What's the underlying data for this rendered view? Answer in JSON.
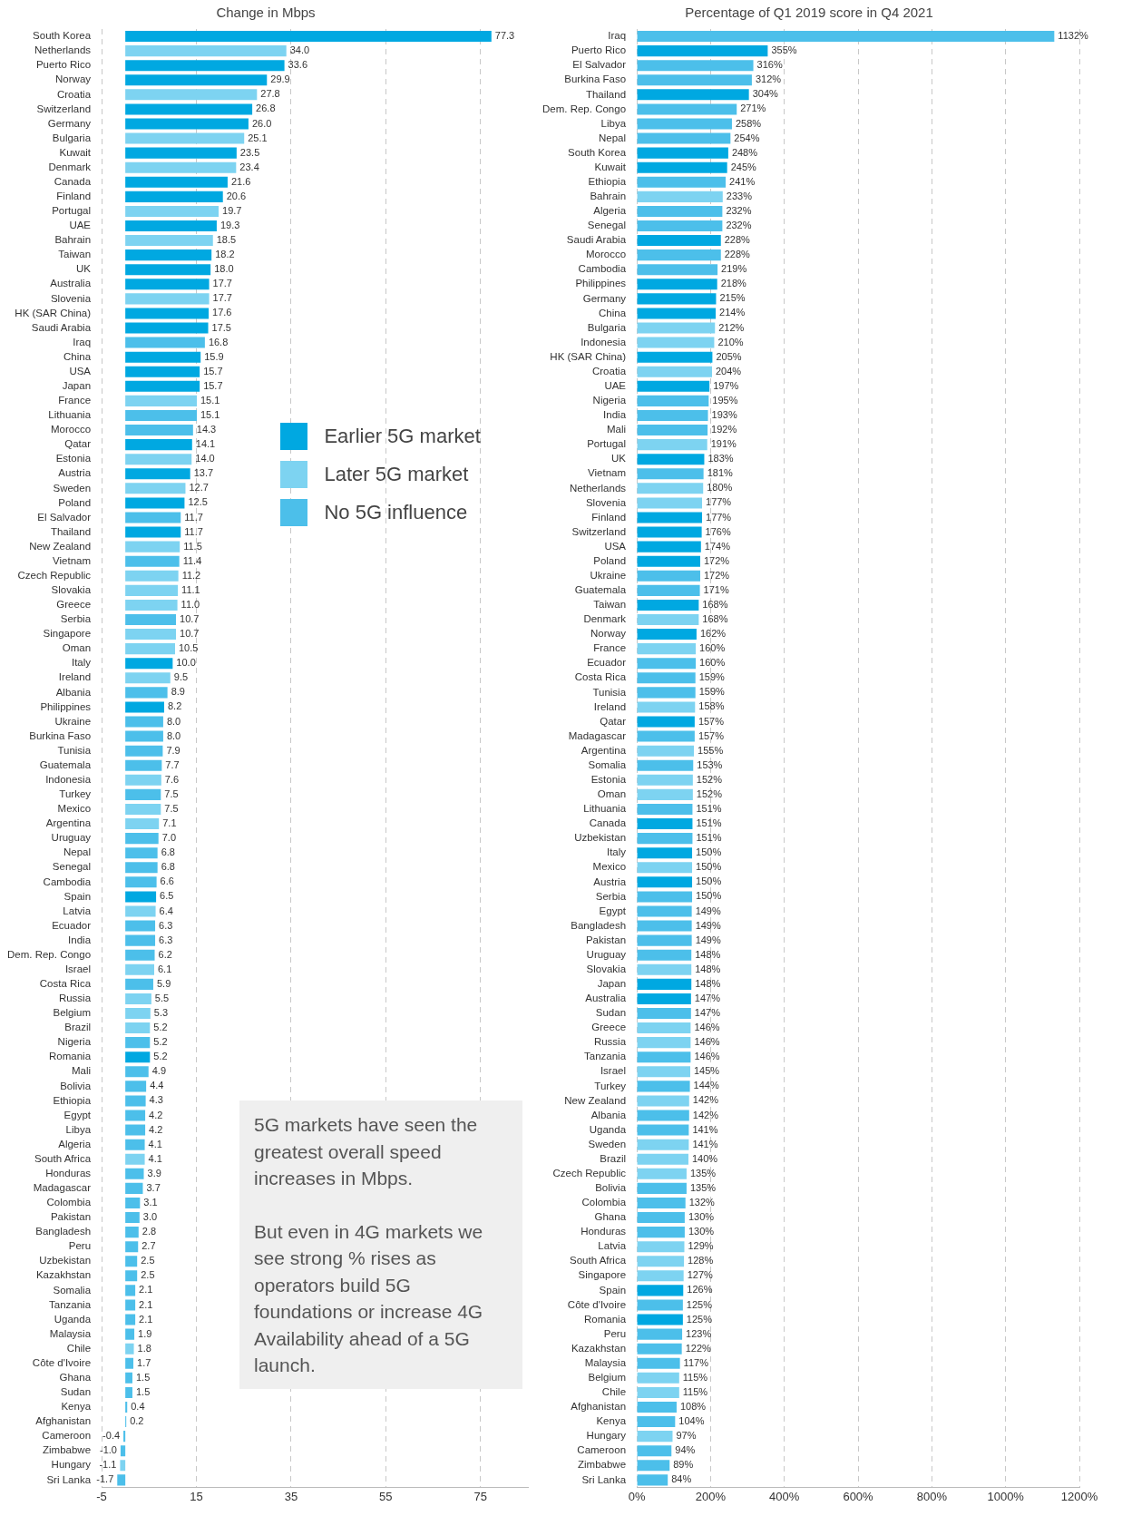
{
  "chart_data": [
    {
      "type": "bar",
      "orientation": "horizontal",
      "title": "Change in Mbps",
      "grid": "x",
      "legend": "right",
      "categories": [
        "South Korea",
        "Netherlands",
        "Puerto Rico",
        "Norway",
        "Croatia",
        "Switzerland",
        "Germany",
        "Bulgaria",
        "Kuwait",
        "Denmark",
        "Canada",
        "Finland",
        "Portugal",
        "UAE",
        "Bahrain",
        "Taiwan",
        "UK",
        "Australia",
        "Slovenia",
        "HK (SAR China)",
        "Saudi Arabia",
        "Iraq",
        "China",
        "USA",
        "Japan",
        "France",
        "Lithuania",
        "Morocco",
        "Qatar",
        "Estonia",
        "Austria",
        "Sweden",
        "Poland",
        "El Salvador",
        "Thailand",
        "New Zealand",
        "Vietnam",
        "Czech Republic",
        "Slovakia",
        "Greece",
        "Serbia",
        "Singapore",
        "Oman",
        "Italy",
        "Ireland",
        "Albania",
        "Philippines",
        "Ukraine",
        "Burkina Faso",
        "Tunisia",
        "Guatemala",
        "Indonesia",
        "Turkey",
        "Mexico",
        "Argentina",
        "Uruguay",
        "Nepal",
        "Senegal",
        "Cambodia",
        "Spain",
        "Latvia",
        "Ecuador",
        "India",
        "Dem. Rep. Congo",
        "Israel",
        "Costa Rica",
        "Russia",
        "Belgium",
        "Brazil",
        "Nigeria",
        "Romania",
        "Mali",
        "Bolivia",
        "Ethiopia",
        "Egypt",
        "Libya",
        "Algeria",
        "South Africa",
        "Honduras",
        "Madagascar",
        "Colombia",
        "Pakistan",
        "Bangladesh",
        "Peru",
        "Uzbekistan",
        "Kazakhstan",
        "Somalia",
        "Tanzania",
        "Uganda",
        "Malaysia",
        "Chile",
        "Côte d'Ivoire",
        "Ghana",
        "Sudan",
        "Kenya",
        "Afghanistan",
        "Cameroon",
        "Zimbabwe",
        "Hungary",
        "Sri Lanka"
      ],
      "xlim": [
        -5,
        85
      ],
      "xticks": [
        -5,
        15,
        35,
        55,
        75
      ],
      "annotations": [
        "5G markets have seen the greatest overall speed increases in Mbps.\n\nBut even in 4G markets we see strong % rises as operators build 5G foundations or increase 4G Availability ahead of a 5G launch."
      ],
      "series": [
        {
          "name": "Earlier 5G market",
          "color": "#00a8e1",
          "values": [
            77.3,
            null,
            33.6,
            29.9,
            null,
            26.8,
            26.0,
            null,
            23.5,
            null,
            21.6,
            20.6,
            null,
            19.3,
            null,
            18.2,
            18.0,
            17.7,
            null,
            17.6,
            17.5,
            null,
            15.9,
            15.7,
            15.7,
            null,
            null,
            null,
            14.1,
            null,
            13.7,
            null,
            12.5,
            null,
            11.7,
            null,
            null,
            null,
            null,
            null,
            null,
            null,
            null,
            10.0,
            null,
            null,
            8.2,
            null,
            null,
            null,
            null,
            null,
            null,
            null,
            null,
            null,
            null,
            null,
            null,
            6.5,
            null,
            null,
            null,
            null,
            null,
            null,
            null,
            null,
            null,
            null,
            5.2,
            null,
            null,
            null,
            null,
            null,
            null,
            null,
            null,
            null,
            null,
            null,
            null,
            null,
            null,
            null,
            null,
            null,
            null,
            null,
            null,
            null,
            null,
            null,
            null,
            null,
            null,
            null,
            null,
            null
          ],
          "value_labels": [
            "77.3",
            null,
            "33.6",
            "29.9",
            null,
            "26.8",
            "26.0",
            null,
            "23.5",
            null,
            "21.6",
            "20.6",
            null,
            "19.3",
            null,
            "18.2",
            "18.0",
            "17.7",
            null,
            "17.6",
            "17.5",
            null,
            "15.9",
            "15.7",
            "15.7",
            null,
            null,
            null,
            "14.1",
            null,
            "13.7",
            null,
            "12.5",
            null,
            "11.7",
            null,
            null,
            null,
            null,
            null,
            null,
            null,
            null,
            "10.0",
            null,
            null,
            "8.2",
            null,
            null,
            null,
            null,
            null,
            null,
            null,
            null,
            null,
            null,
            null,
            null,
            "6.5",
            null,
            null,
            null,
            null,
            null,
            null,
            null,
            null,
            null,
            null,
            "5.2",
            null,
            null,
            null,
            null,
            null,
            null,
            null,
            null,
            null,
            null,
            null,
            null,
            null,
            null,
            null,
            null,
            null,
            null,
            null,
            null,
            null,
            null,
            null,
            null,
            null,
            null,
            null,
            null,
            null
          ]
        },
        {
          "name": "Later 5G market",
          "color": "#7dd3f1",
          "values": [
            null,
            34.0,
            null,
            null,
            27.8,
            null,
            null,
            25.1,
            null,
            23.4,
            null,
            null,
            19.7,
            null,
            18.5,
            null,
            null,
            null,
            17.7,
            null,
            null,
            null,
            null,
            null,
            null,
            15.1,
            null,
            null,
            null,
            14.0,
            null,
            12.7,
            null,
            null,
            null,
            11.5,
            null,
            11.2,
            11.1,
            11.0,
            null,
            10.7,
            10.5,
            null,
            9.5,
            null,
            null,
            null,
            null,
            null,
            null,
            7.6,
            null,
            7.5,
            7.1,
            null,
            null,
            null,
            null,
            null,
            6.4,
            null,
            null,
            null,
            6.1,
            null,
            5.5,
            5.3,
            5.2,
            null,
            null,
            null,
            null,
            null,
            null,
            null,
            null,
            4.1,
            null,
            null,
            null,
            null,
            null,
            null,
            null,
            null,
            null,
            null,
            null,
            null,
            1.8,
            null,
            null,
            null,
            null,
            null,
            null,
            null,
            -1.1,
            null
          ],
          "value_labels": [
            null,
            "34.0",
            null,
            null,
            "27.8",
            null,
            null,
            "25.1",
            null,
            "23.4",
            null,
            null,
            "19.7",
            null,
            "18.5",
            null,
            null,
            null,
            "17.7",
            null,
            null,
            null,
            null,
            null,
            null,
            "15.1",
            null,
            null,
            null,
            "14.0",
            null,
            "12.7",
            null,
            null,
            null,
            "11.5",
            null,
            "11.2",
            "11.1",
            "11.0",
            null,
            "10.7",
            "10.5",
            null,
            "9.5",
            null,
            null,
            null,
            null,
            null,
            null,
            "7.6",
            null,
            "7.5",
            "7.1",
            null,
            null,
            null,
            null,
            null,
            "6.4",
            null,
            null,
            null,
            "6.1",
            null,
            "5.5",
            "5.3",
            "5.2",
            null,
            null,
            null,
            null,
            null,
            null,
            null,
            null,
            "4.1",
            null,
            null,
            null,
            null,
            null,
            null,
            null,
            null,
            null,
            null,
            null,
            null,
            "1.8",
            null,
            null,
            null,
            null,
            null,
            null,
            null,
            "-1.1",
            null
          ]
        },
        {
          "name": "No 5G influence",
          "color": "#4cbfea",
          "values": [
            null,
            null,
            null,
            null,
            null,
            null,
            null,
            null,
            null,
            null,
            null,
            null,
            null,
            null,
            null,
            null,
            null,
            null,
            null,
            null,
            null,
            16.8,
            null,
            null,
            null,
            null,
            15.1,
            14.3,
            null,
            null,
            null,
            null,
            null,
            11.7,
            null,
            null,
            11.4,
            null,
            null,
            null,
            10.7,
            null,
            null,
            null,
            null,
            8.9,
            null,
            8.0,
            8.0,
            7.9,
            7.7,
            null,
            7.5,
            null,
            null,
            7.0,
            6.8,
            6.8,
            6.6,
            null,
            null,
            6.3,
            6.3,
            6.2,
            null,
            5.9,
            null,
            null,
            null,
            5.2,
            null,
            4.9,
            4.4,
            4.3,
            4.2,
            4.2,
            4.1,
            null,
            3.9,
            3.7,
            3.1,
            3.0,
            2.8,
            2.7,
            2.5,
            2.5,
            2.1,
            2.1,
            2.1,
            1.9,
            null,
            1.7,
            1.5,
            1.5,
            0.4,
            0.2,
            -0.4,
            -1.0,
            null,
            -1.7
          ],
          "value_labels": [
            null,
            null,
            null,
            null,
            null,
            null,
            null,
            null,
            null,
            null,
            null,
            null,
            null,
            null,
            null,
            null,
            null,
            null,
            null,
            null,
            null,
            "16.8",
            null,
            null,
            null,
            null,
            "15.1",
            "14.3",
            null,
            null,
            null,
            null,
            null,
            "11.7",
            null,
            null,
            "11.4",
            null,
            null,
            null,
            "10.7",
            null,
            null,
            null,
            null,
            "8.9",
            null,
            "8.0",
            "8.0",
            "7.9",
            "7.7",
            null,
            "7.5",
            null,
            null,
            "7.0",
            "6.8",
            "6.8",
            "6.6",
            null,
            null,
            "6.3",
            "6.3",
            "6.2",
            null,
            "5.9",
            null,
            null,
            null,
            "5.2",
            null,
            "4.9",
            "4.4",
            "4.3",
            "4.2",
            "4.2",
            "4.1",
            null,
            "3.9",
            "3.7",
            "3.1",
            "3.0",
            "2.8",
            "2.7",
            "2.5",
            "2.5",
            "2.1",
            "2.1",
            "2.1",
            "1.9",
            null,
            "1.7",
            "1.5",
            "1.5",
            "0.4",
            "0.2",
            "-0.4",
            "-1.0",
            null,
            "-1.7"
          ]
        }
      ]
    },
    {
      "type": "bar",
      "orientation": "horizontal",
      "title": "Percentage of Q1 2019 score in Q4 2021",
      "grid": "x",
      "categories": [
        "Iraq",
        "Puerto Rico",
        "El Salvador",
        "Burkina Faso",
        "Thailand",
        "Dem. Rep. Congo",
        "Libya",
        "Nepal",
        "South Korea",
        "Kuwait",
        "Ethiopia",
        "Bahrain",
        "Algeria",
        "Senegal",
        "Saudi Arabia",
        "Morocco",
        "Cambodia",
        "Philippines",
        "Germany",
        "China",
        "Bulgaria",
        "Indonesia",
        "HK (SAR China)",
        "Croatia",
        "UAE",
        "Nigeria",
        "India",
        "Mali",
        "Portugal",
        "UK",
        "Vietnam",
        "Netherlands",
        "Slovenia",
        "Finland",
        "Switzerland",
        "USA",
        "Poland",
        "Ukraine",
        "Guatemala",
        "Taiwan",
        "Denmark",
        "Norway",
        "France",
        "Ecuador",
        "Costa Rica",
        "Tunisia",
        "Ireland",
        "Qatar",
        "Madagascar",
        "Argentina",
        "Somalia",
        "Estonia",
        "Oman",
        "Lithuania",
        "Canada",
        "Uzbekistan",
        "Italy",
        "Mexico",
        "Austria",
        "Serbia",
        "Egypt",
        "Bangladesh",
        "Pakistan",
        "Uruguay",
        "Slovakia",
        "Japan",
        "Australia",
        "Sudan",
        "Greece",
        "Russia",
        "Tanzania",
        "Israel",
        "Turkey",
        "New Zealand",
        "Albania",
        "Uganda",
        "Sweden",
        "Brazil",
        "Czech Republic",
        "Bolivia",
        "Colombia",
        "Ghana",
        "Honduras",
        "Latvia",
        "South Africa",
        "Singapore",
        "Spain",
        "Côte d'Ivoire",
        "Romania",
        "Peru",
        "Kazakhstan",
        "Malaysia",
        "Belgium",
        "Chile",
        "Afghanistan",
        "Kenya",
        "Hungary",
        "Cameroon",
        "Zimbabwe",
        "Sri Lanka"
      ],
      "xlim": [
        0,
        1200
      ],
      "xticks": [
        {
          "value": 0,
          "label": "0%"
        },
        {
          "value": 200,
          "label": "200%"
        },
        {
          "value": 400,
          "label": "400%"
        },
        {
          "value": 600,
          "label": "600%"
        },
        {
          "value": 800,
          "label": "800%"
        },
        {
          "value": 1000,
          "label": "1000%"
        },
        {
          "value": 1200,
          "label": "1200%"
        }
      ],
      "series": [
        {
          "color": "#00a8e1",
          "values": [
            null,
            355,
            null,
            null,
            304,
            null,
            null,
            null,
            248,
            245,
            null,
            null,
            null,
            null,
            228,
            null,
            null,
            218,
            215,
            214,
            null,
            null,
            205,
            null,
            197,
            null,
            null,
            null,
            null,
            183,
            null,
            null,
            null,
            177,
            176,
            174,
            172,
            null,
            null,
            168,
            null,
            162,
            null,
            null,
            null,
            null,
            null,
            157,
            null,
            null,
            null,
            null,
            null,
            null,
            151,
            null,
            150,
            null,
            150,
            null,
            null,
            null,
            null,
            null,
            null,
            148,
            147,
            null,
            null,
            null,
            null,
            null,
            null,
            null,
            null,
            null,
            null,
            null,
            null,
            null,
            null,
            null,
            null,
            null,
            null,
            null,
            126,
            null,
            125,
            null,
            null,
            null,
            null,
            null,
            null,
            null,
            null,
            null,
            null,
            null
          ],
          "value_labels": [
            null,
            "355%",
            null,
            null,
            "304%",
            null,
            null,
            null,
            "248%",
            "245%",
            null,
            null,
            null,
            null,
            "228%",
            null,
            null,
            "218%",
            "215%",
            "214%",
            null,
            null,
            "205%",
            null,
            "197%",
            null,
            null,
            null,
            null,
            "183%",
            null,
            null,
            null,
            "177%",
            "176%",
            "174%",
            "172%",
            null,
            null,
            "168%",
            null,
            "162%",
            null,
            null,
            null,
            null,
            null,
            "157%",
            null,
            null,
            null,
            null,
            null,
            null,
            "151%",
            null,
            "150%",
            null,
            "150%",
            null,
            null,
            null,
            null,
            null,
            null,
            "148%",
            "147%",
            null,
            null,
            null,
            null,
            null,
            null,
            null,
            null,
            null,
            null,
            null,
            null,
            null,
            null,
            null,
            null,
            null,
            null,
            null,
            "126%",
            null,
            "125%",
            null,
            null,
            null,
            null,
            null,
            null,
            null,
            null,
            null,
            null,
            null
          ]
        },
        {
          "color": "#7dd3f1",
          "values": [
            null,
            null,
            null,
            null,
            null,
            null,
            null,
            null,
            null,
            null,
            null,
            233,
            null,
            null,
            null,
            null,
            null,
            null,
            null,
            null,
            212,
            210,
            null,
            204,
            null,
            null,
            null,
            null,
            191,
            null,
            null,
            180,
            177,
            null,
            null,
            null,
            null,
            null,
            null,
            null,
            168,
            null,
            160,
            null,
            null,
            null,
            158,
            null,
            null,
            155,
            null,
            152,
            152,
            null,
            null,
            null,
            null,
            150,
            null,
            null,
            null,
            null,
            null,
            null,
            148,
            null,
            null,
            null,
            146,
            146,
            null,
            145,
            null,
            142,
            null,
            null,
            141,
            140,
            135,
            null,
            null,
            null,
            null,
            129,
            128,
            127,
            null,
            null,
            null,
            null,
            null,
            null,
            115,
            115,
            null,
            null,
            97,
            null,
            null,
            null
          ],
          "value_labels": [
            null,
            null,
            null,
            null,
            null,
            null,
            null,
            null,
            null,
            null,
            null,
            "233%",
            null,
            null,
            null,
            null,
            null,
            null,
            null,
            null,
            "212%",
            "210%",
            null,
            "204%",
            null,
            null,
            null,
            null,
            "191%",
            null,
            null,
            "180%",
            "177%",
            null,
            null,
            null,
            null,
            null,
            null,
            null,
            "168%",
            null,
            "160%",
            null,
            null,
            null,
            "158%",
            null,
            null,
            "155%",
            null,
            "152%",
            "152%",
            null,
            null,
            null,
            null,
            "150%",
            null,
            null,
            null,
            null,
            null,
            null,
            "148%",
            null,
            null,
            null,
            "146%",
            "146%",
            null,
            "145%",
            null,
            "142%",
            null,
            null,
            "141%",
            "140%",
            "135%",
            null,
            null,
            null,
            null,
            "129%",
            "128%",
            "127%",
            null,
            null,
            null,
            null,
            null,
            null,
            "115%",
            "115%",
            null,
            null,
            "97%",
            null,
            null,
            null
          ]
        },
        {
          "color": "#4cbfea",
          "values": [
            1132,
            null,
            316,
            312,
            null,
            271,
            258,
            254,
            null,
            null,
            241,
            null,
            232,
            232,
            null,
            228,
            219,
            null,
            null,
            null,
            null,
            null,
            null,
            null,
            null,
            195,
            193,
            192,
            null,
            null,
            181,
            null,
            null,
            null,
            null,
            null,
            null,
            172,
            171,
            null,
            null,
            null,
            null,
            160,
            159,
            159,
            null,
            null,
            157,
            null,
            153,
            null,
            null,
            151,
            null,
            151,
            null,
            null,
            null,
            150,
            149,
            149,
            149,
            148,
            null,
            null,
            null,
            147,
            null,
            null,
            146,
            null,
            144,
            null,
            142,
            141,
            null,
            null,
            null,
            135,
            132,
            130,
            130,
            null,
            null,
            null,
            null,
            125,
            null,
            123,
            122,
            117,
            null,
            null,
            108,
            104,
            null,
            94,
            89,
            84
          ],
          "value_labels": [
            "1132%",
            null,
            "316%",
            "312%",
            null,
            "271%",
            "258%",
            "254%",
            null,
            null,
            "241%",
            null,
            "232%",
            "232%",
            null,
            "228%",
            "219%",
            null,
            null,
            null,
            null,
            null,
            null,
            null,
            null,
            "195%",
            "193%",
            "192%",
            null,
            null,
            "181%",
            null,
            null,
            null,
            null,
            null,
            null,
            "172%",
            "171%",
            null,
            null,
            null,
            null,
            "160%",
            "159%",
            "159%",
            null,
            null,
            "157%",
            null,
            "153%",
            null,
            null,
            "151%",
            null,
            "151%",
            null,
            null,
            null,
            "150%",
            "149%",
            "149%",
            "149%",
            "148%",
            null,
            null,
            null,
            "147%",
            null,
            null,
            "146%",
            null,
            "144%",
            null,
            "142%",
            "141%",
            null,
            null,
            null,
            "135%",
            "132%",
            "130%",
            "130%",
            null,
            null,
            null,
            null,
            "125%",
            null,
            "123%",
            "122%",
            "117%",
            null,
            null,
            "108%",
            "104%",
            null,
            "94%",
            "89%",
            "84%"
          ]
        }
      ]
    }
  ]
}
